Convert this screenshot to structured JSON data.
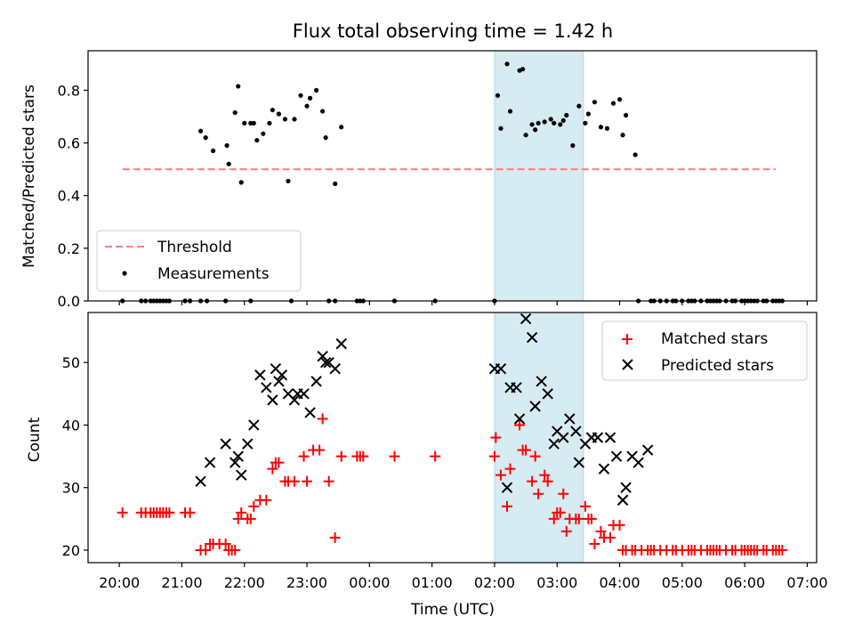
{
  "figure": {
    "title": "Flux total observing time = 1.42 h",
    "xlabel": "Time (UTC)",
    "xticks": [
      "20:00",
      "21:00",
      "22:00",
      "23:00",
      "00:00",
      "01:00",
      "02:00",
      "03:00",
      "04:00",
      "05:00",
      "06:00",
      "07:00"
    ],
    "xlim": [
      -0.5,
      11.15
    ],
    "highlight_span": [
      6.0,
      7.42
    ],
    "highlight_color": "#add8e6"
  },
  "chart_data": [
    {
      "type": "scatter",
      "ylabel": "Matched/Predicted stars",
      "ylim": [
        0,
        0.95
      ],
      "yticks": [
        "0.0",
        "0.2",
        "0.4",
        "0.6",
        "0.8"
      ],
      "yticks_values": [
        0.0,
        0.2,
        0.4,
        0.6,
        0.8
      ],
      "legend_position": "lower-left",
      "threshold": {
        "name": "Threshold",
        "value": 0.5,
        "x_range": [
          0.05,
          10.5
        ],
        "color": "#ff7f7f"
      },
      "series": [
        {
          "name": "Measurements",
          "color": "#000000",
          "x": [
            0.05,
            0.35,
            0.42,
            0.5,
            0.55,
            0.6,
            0.65,
            0.7,
            0.75,
            0.8,
            1.05,
            1.13,
            1.3,
            1.38,
            1.5,
            1.75,
            1.95,
            1.3,
            1.4,
            1.7,
            1.72,
            1.85,
            1.9,
            2.0,
            2.1,
            2.15,
            2.2,
            2.3,
            2.4,
            2.45,
            2.55,
            2.65,
            2.7,
            2.8,
            2.9,
            3.0,
            3.05,
            3.15,
            3.25,
            3.3,
            3.35,
            3.45,
            3.55,
            2.1,
            2.75,
            3.45,
            3.8,
            3.85,
            3.9,
            4.4,
            5.05,
            6.0,
            6.05,
            6.1,
            6.2,
            6.25,
            6.4,
            6.45,
            6.5,
            6.6,
            6.65,
            6.7,
            6.8,
            6.9,
            6.95,
            7.05,
            7.1,
            7.15,
            7.25,
            7.35,
            7.45,
            7.5,
            7.6,
            7.7,
            7.8,
            7.9,
            8.0,
            8.05,
            8.1,
            8.25,
            8.3,
            8.5,
            8.55,
            8.65,
            8.75,
            8.85,
            8.9,
            9.0,
            9.1,
            9.15,
            9.2,
            9.3,
            9.4,
            9.45,
            9.5,
            9.55,
            9.6,
            9.7,
            9.8,
            9.85,
            9.95,
            10.0,
            10.05,
            10.1,
            10.15,
            10.2,
            10.3,
            10.35,
            10.45,
            10.5,
            10.55,
            10.6
          ],
          "y": [
            0,
            0,
            0,
            0,
            0,
            0,
            0,
            0,
            0,
            0,
            0,
            0,
            0.645,
            0.62,
            0.57,
            0.52,
            0.45,
            0,
            0,
            0,
            0.59,
            0.715,
            0.815,
            0.675,
            0.675,
            0.675,
            0.61,
            0.635,
            0.675,
            0.725,
            0.71,
            0.69,
            0.455,
            0.69,
            0.78,
            0.74,
            0.77,
            0.8,
            0.72,
            0.62,
            0,
            0.445,
            0.66,
            0,
            0,
            0,
            0,
            0,
            0,
            0,
            0,
            0,
            0.78,
            0.655,
            0.9,
            0.72,
            0.875,
            0.88,
            0.63,
            0.67,
            0.65,
            0.675,
            0.68,
            0.69,
            0.675,
            0.67,
            0.685,
            0.705,
            0.59,
            0.74,
            0.675,
            0.71,
            0.755,
            0.66,
            0.655,
            0.75,
            0.765,
            0.63,
            0.705,
            0.555,
            0,
            0,
            0,
            0,
            0,
            0,
            0,
            0,
            0,
            0,
            0,
            0,
            0,
            0,
            0,
            0,
            0,
            0,
            0,
            0,
            0,
            0,
            0,
            0,
            0,
            0,
            0,
            0,
            0,
            0,
            0,
            0
          ]
        }
      ]
    },
    {
      "type": "scatter",
      "ylabel": "Count",
      "ylim": [
        18,
        58
      ],
      "yticks": [
        "20",
        "30",
        "40",
        "50"
      ],
      "yticks_values": [
        20,
        30,
        40,
        50
      ],
      "legend_position": "upper-right",
      "series": [
        {
          "name": "Matched stars",
          "marker": "+",
          "color": "#ff0000",
          "x": [
            0.05,
            0.35,
            0.42,
            0.5,
            0.55,
            0.6,
            0.65,
            0.7,
            0.75,
            0.8,
            1.05,
            1.13,
            1.3,
            1.38,
            1.45,
            1.5,
            1.6,
            1.7,
            1.75,
            1.8,
            1.85,
            1.9,
            1.95,
            2.05,
            2.1,
            2.15,
            2.25,
            2.35,
            2.45,
            2.5,
            2.55,
            2.65,
            2.7,
            2.8,
            2.95,
            3.0,
            3.1,
            3.2,
            3.25,
            3.35,
            3.45,
            3.55,
            3.8,
            3.85,
            3.9,
            4.4,
            5.05,
            6.0,
            6.02,
            6.1,
            6.2,
            6.25,
            6.4,
            6.45,
            6.5,
            6.6,
            6.65,
            6.7,
            6.8,
            6.85,
            6.95,
            7.0,
            7.05,
            7.1,
            7.15,
            7.2,
            7.3,
            7.35,
            7.45,
            7.5,
            7.55,
            7.6,
            7.7,
            7.75,
            7.85,
            7.9,
            8.0,
            8.05,
            8.1,
            8.2,
            8.25,
            8.35,
            8.45,
            8.5,
            8.55,
            8.65,
            8.75,
            8.85,
            8.9,
            9.0,
            9.1,
            9.15,
            9.2,
            9.3,
            9.4,
            9.45,
            9.5,
            9.55,
            9.6,
            9.7,
            9.8,
            9.85,
            9.95,
            10.0,
            10.05,
            10.1,
            10.15,
            10.2,
            10.3,
            10.35,
            10.45,
            10.5,
            10.55,
            10.6
          ],
          "y": [
            26,
            26,
            26,
            26,
            26,
            26,
            26,
            26,
            26,
            26,
            26,
            26,
            20,
            20,
            21,
            21,
            21,
            21,
            20,
            20,
            20,
            25,
            26,
            25,
            25,
            27,
            28,
            28,
            33,
            34,
            34,
            31,
            31,
            31,
            35,
            31,
            36,
            36,
            41,
            31,
            22,
            35,
            35,
            35,
            35,
            35,
            35,
            35,
            38,
            32,
            27,
            33,
            40,
            36,
            36,
            31,
            35,
            29,
            32,
            31,
            25,
            26,
            26,
            29,
            23,
            25,
            25,
            25,
            27,
            25,
            25,
            21,
            23,
            22,
            22,
            24,
            24,
            20,
            20,
            20,
            20,
            20,
            20,
            20,
            20,
            20,
            20,
            20,
            20,
            20,
            20,
            20,
            20,
            20,
            20,
            20,
            20,
            20,
            20,
            20,
            20,
            20,
            20,
            20,
            20,
            20,
            20,
            20,
            20,
            20,
            20,
            20,
            20,
            20
          ]
        },
        {
          "name": "Predicted stars",
          "marker": "x",
          "color": "#000000",
          "x": [
            1.3,
            1.45,
            1.7,
            1.85,
            1.9,
            1.95,
            2.05,
            2.15,
            2.25,
            2.35,
            2.45,
            2.5,
            2.55,
            2.6,
            2.7,
            2.8,
            2.85,
            2.95,
            3.05,
            3.15,
            3.25,
            3.3,
            3.35,
            3.45,
            3.55,
            6.0,
            6.1,
            6.2,
            6.25,
            6.35,
            6.4,
            6.5,
            6.6,
            6.65,
            6.75,
            6.85,
            6.95,
            7.0,
            7.1,
            7.2,
            7.3,
            7.35,
            7.45,
            7.55,
            7.65,
            7.75,
            7.85,
            7.95,
            8.05,
            8.1,
            8.2,
            8.3,
            8.45
          ],
          "y": [
            31,
            34,
            37,
            34,
            35,
            32,
            37,
            40,
            48,
            46,
            44,
            49,
            47,
            48,
            45,
            44,
            45,
            45,
            42,
            47,
            51,
            50,
            50,
            49,
            53,
            49,
            49,
            30,
            46,
            46,
            41,
            57,
            54,
            43,
            47,
            45,
            37,
            39,
            38,
            41,
            39,
            34,
            37,
            38,
            38,
            33,
            38,
            35,
            28,
            30,
            35,
            34,
            36
          ]
        }
      ]
    }
  ]
}
